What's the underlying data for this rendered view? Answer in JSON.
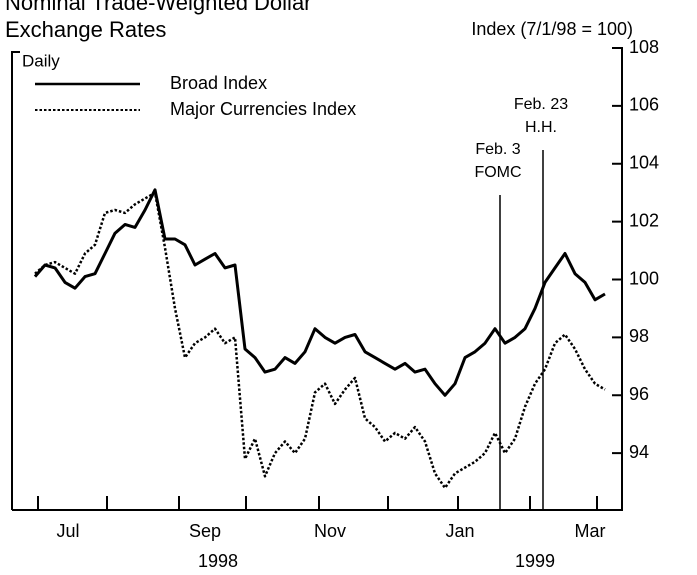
{
  "chart_data": {
    "type": "line",
    "title": "Nominal Trade-Weighted Dollar",
    "subtitle": "Exchange Rates",
    "y_axis_label": "Index (7/1/98 = 100)",
    "frequency_label": "Daily",
    "x_labels": [
      "Jul",
      "Sep",
      "Nov",
      "Jan",
      "Mar"
    ],
    "years": [
      "1998",
      "1999"
    ],
    "events": [
      {
        "date": "Feb. 3",
        "label": "FOMC"
      },
      {
        "date": "Feb. 23",
        "label": "H.H."
      }
    ],
    "ylim": [
      92,
      108
    ],
    "yticks": [
      94,
      96,
      98,
      100,
      102,
      104,
      106,
      108
    ],
    "series": [
      {
        "name": "Broad Index",
        "color": "#000000",
        "style": "solid",
        "values": [
          100.1,
          100.5,
          100.4,
          99.9,
          99.7,
          100.1,
          100.2,
          100.9,
          101.6,
          101.9,
          101.8,
          102.4,
          103.1,
          101.4,
          101.4,
          101.2,
          100.5,
          100.7,
          100.9,
          100.4,
          100.5,
          97.6,
          97.3,
          96.8,
          96.9,
          97.3,
          97.1,
          97.5,
          98.3,
          98.0,
          97.8,
          98.0,
          98.1,
          97.5,
          97.3,
          97.1,
          96.9,
          97.1,
          96.8,
          96.9,
          96.4,
          96.0,
          96.4,
          97.3,
          97.5,
          97.8,
          98.3,
          97.8,
          98.0,
          98.3,
          99.0,
          99.9,
          100.4,
          100.9,
          100.2,
          99.9,
          99.3,
          99.5
        ]
      },
      {
        "name": "Major Currencies Index",
        "color": "#000000",
        "style": "dotted",
        "values": [
          100.2,
          100.5,
          100.6,
          100.4,
          100.2,
          100.9,
          101.2,
          102.3,
          102.4,
          102.3,
          102.6,
          102.8,
          103.0,
          101.1,
          99.0,
          97.3,
          97.8,
          98.0,
          98.3,
          97.8,
          98.0,
          93.8,
          94.5,
          93.2,
          94.0,
          94.4,
          94.0,
          94.5,
          96.1,
          96.4,
          95.7,
          96.2,
          96.6,
          95.2,
          94.9,
          94.4,
          94.7,
          94.5,
          94.9,
          94.4,
          93.3,
          92.8,
          93.3,
          93.5,
          93.7,
          94.0,
          94.7,
          94.0,
          94.5,
          95.6,
          96.4,
          96.9,
          97.8,
          98.1,
          97.6,
          96.9,
          96.4,
          96.2
        ]
      }
    ]
  }
}
